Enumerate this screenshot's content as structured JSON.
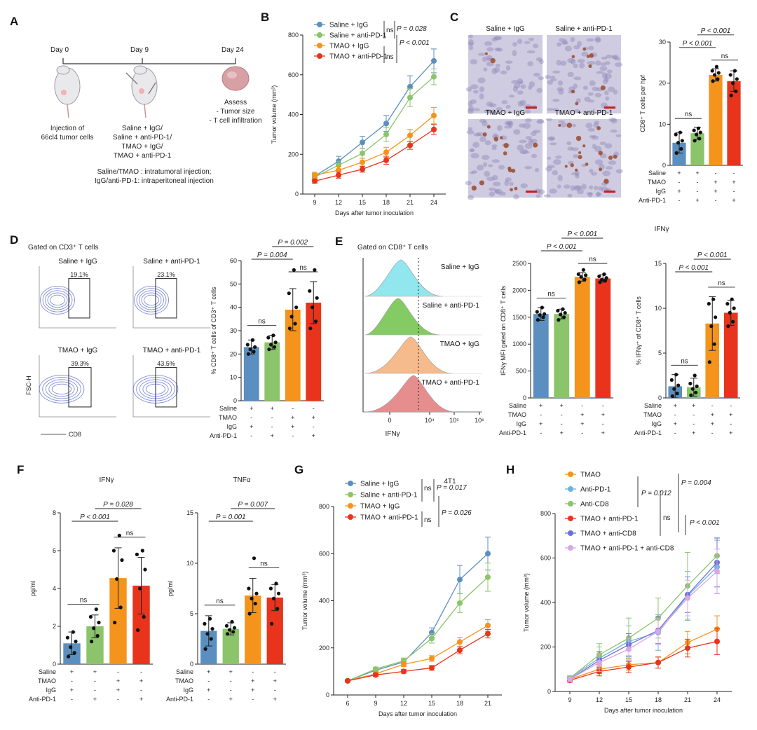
{
  "panels": {
    "A": "A",
    "B": "B",
    "C": "C",
    "D": "D",
    "E": "E",
    "F": "F",
    "G": "G",
    "H": "H"
  },
  "colors": {
    "blue": "#5b8fbf",
    "green": "#8bc46a",
    "orange": "#f4941c",
    "red": "#e8341c",
    "lightblue": "#6fb2e0",
    "lavender": "#d9a6e6",
    "purple": "#6c72d6"
  },
  "panelA": {
    "day0": "Day 0",
    "day9": "Day 9",
    "day24": "Day 24",
    "inj1": "Injection of",
    "inj2": "66cl4 tumor cells",
    "tr1": "Saline + IgG/",
    "tr2": "Saline + anti-PD-1/",
    "tr3": "TMAO + IgG/",
    "tr4": "TMAO + anti-PD-1",
    "as1": "Assess",
    "as2": "- Tumor size",
    "as3": "- T cell infiltration",
    "note1": "Saline/TMAO : intratumoral injection;",
    "note2": "IgG/anti-PD-1: intraperitoneal injection"
  },
  "panelC_images": [
    "Saline + IgG",
    "Saline + anti-PD-1",
    "TMAO + IgG",
    "TMAO + anti-PD-1"
  ],
  "panelD_plots": {
    "gate": "Gated on CD3⁺ T cells",
    "titles": [
      "Saline + IgG",
      "Saline + anti-PD-1",
      "TMAO + IgG",
      "TMAO + anti-PD-1"
    ],
    "pct": [
      "19.1%",
      "23.1%",
      "39.3%",
      "43.5%"
    ],
    "ylabel": "FSC-H",
    "xlabel": "CD8"
  },
  "panelE_hist": {
    "gate": "Gated on CD8⁺ T cells",
    "titles": [
      "Saline + IgG",
      "Saline + anti-PD-1",
      "TMAO + IgG",
      "TMAO + anti-PD-1"
    ],
    "xlabel": "IFNγ",
    "xticks": [
      "0",
      "10⁴",
      "10⁵",
      "10⁶"
    ]
  },
  "panelE_title": "IFNγ",
  "panelF_title": "",
  "panelG_title": "4T1",
  "treat_rows": [
    "Saline",
    "TMAO",
    "IgG",
    "Anti-PD-1"
  ],
  "treat_signs": [
    [
      "+",
      "+",
      "-",
      "-"
    ],
    [
      "-",
      "-",
      "+",
      "+"
    ],
    [
      "+",
      "-",
      "+",
      "-"
    ],
    [
      "-",
      "+",
      "-",
      "+"
    ]
  ],
  "chart_data": [
    {
      "id": "B",
      "type": "line",
      "xlabel": "Days after tumor inoculation",
      "ylabel": "Tumor volume (mm³)",
      "x": [
        9,
        12,
        15,
        18,
        21,
        24
      ],
      "xlim": [
        7.5,
        25.5
      ],
      "ylim": [
        0,
        800
      ],
      "yticks": [
        0,
        200,
        400,
        600,
        800
      ],
      "series": [
        {
          "name": "Saline + IgG",
          "color": "#5b8fbf",
          "values": [
            90,
            165,
            260,
            355,
            540,
            670
          ],
          "err": [
            15,
            25,
            30,
            40,
            55,
            60
          ]
        },
        {
          "name": "Saline + anti-PD-1",
          "color": "#8bc46a",
          "values": [
            85,
            145,
            205,
            300,
            485,
            590
          ],
          "err": [
            12,
            20,
            25,
            35,
            45,
            40
          ]
        },
        {
          "name": "TMAO + IgG",
          "color": "#f4941c",
          "values": [
            95,
            120,
            160,
            210,
            295,
            395
          ],
          "err": [
            15,
            20,
            20,
            25,
            30,
            40
          ]
        },
        {
          "name": "TMAO + anti-PD-1",
          "color": "#e8341c",
          "values": [
            65,
            95,
            125,
            170,
            245,
            325
          ],
          "err": [
            10,
            15,
            15,
            20,
            20,
            25
          ]
        }
      ],
      "stats": [
        {
          "text": "ns",
          "italic": false
        },
        {
          "text": "P = 0.028",
          "italic": true
        },
        {
          "text": "ns",
          "italic": false
        },
        {
          "text": "P < 0.001",
          "italic": true
        }
      ]
    },
    {
      "id": "C",
      "type": "bar",
      "ylabel": "CD8⁺ T cells per hpf",
      "ylim": [
        0,
        30
      ],
      "yticks": [
        0,
        10,
        20,
        30
      ],
      "values": [
        5.5,
        7.8,
        22,
        20.5
      ],
      "err": [
        2.5,
        1.5,
        1.5,
        2.5
      ],
      "points": [
        [
          3,
          4,
          5.5,
          6,
          7.5,
          8
        ],
        [
          6,
          6.5,
          7.5,
          8,
          8.5,
          9
        ],
        [
          20.5,
          21,
          22,
          22.5,
          23,
          24
        ],
        [
          17,
          18,
          20,
          21,
          22,
          23
        ]
      ],
      "stats": [
        {
          "text": "ns"
        },
        {
          "text": "P < 0.001",
          "italic": true
        },
        {
          "text": "P < 0.001",
          "italic": true
        },
        {
          "text": "ns"
        }
      ]
    },
    {
      "id": "D",
      "type": "bar",
      "ylabel": "% CD8⁺ T cells of CD3⁺ T cells",
      "ylim": [
        0,
        60
      ],
      "yticks": [
        0,
        10,
        20,
        30,
        40,
        50,
        60
      ],
      "values": [
        23,
        25,
        39,
        42
      ],
      "err": [
        3,
        3,
        9,
        9
      ],
      "points": [
        [
          20,
          21,
          22,
          23,
          24,
          26
        ],
        [
          22,
          23,
          24,
          25,
          27,
          28
        ],
        [
          31,
          33,
          36,
          40,
          46,
          56
        ],
        [
          31,
          34,
          40,
          44,
          47,
          56
        ]
      ],
      "stats": [
        {
          "text": "ns"
        },
        {
          "text": "P = 0.004",
          "italic": true
        },
        {
          "text": "P = 0.002",
          "italic": true
        },
        {
          "text": "ns"
        }
      ]
    },
    {
      "id": "E1",
      "type": "bar",
      "ylabel": "IFNγ MFI gated on CD8⁺ T cells",
      "ylim": [
        0,
        2500
      ],
      "yticks": [
        0,
        500,
        1000,
        1500,
        2000,
        2500
      ],
      "values": [
        1560,
        1560,
        2250,
        2220
      ],
      "err": [
        120,
        90,
        80,
        70
      ],
      "points": [
        [
          1450,
          1500,
          1540,
          1560,
          1600,
          1680
        ],
        [
          1450,
          1500,
          1550,
          1580,
          1620,
          1650
        ],
        [
          2150,
          2200,
          2250,
          2280,
          2300,
          2380
        ],
        [
          2150,
          2180,
          2200,
          2230,
          2260,
          2300
        ]
      ],
      "stats": [
        {
          "text": "ns"
        },
        {
          "text": "P < 0.001",
          "italic": true
        },
        {
          "text": "P < 0.001",
          "italic": true
        },
        {
          "text": "ns"
        }
      ]
    },
    {
      "id": "E2",
      "type": "bar",
      "ylabel": "% IFNγ⁺ of CD8⁺ T cells",
      "ylim": [
        0,
        15
      ],
      "yticks": [
        0,
        5,
        10,
        15
      ],
      "values": [
        1.3,
        1.2,
        8.3,
        9.5
      ],
      "err": [
        1.3,
        1.0,
        3.0,
        1.4
      ],
      "points": [
        [
          0.2,
          0.5,
          1.0,
          1.4,
          2.0,
          2.6
        ],
        [
          0.3,
          0.6,
          1.0,
          1.3,
          1.6,
          2.5
        ],
        [
          4.0,
          6.0,
          8.0,
          9.0,
          10.5,
          11.0
        ],
        [
          8.0,
          8.5,
          9.5,
          10.0,
          10.5,
          11.0
        ]
      ],
      "stats": [
        {
          "text": "ns"
        },
        {
          "text": "P < 0.001",
          "italic": true
        },
        {
          "text": "P < 0.001",
          "italic": true
        },
        {
          "text": "ns"
        }
      ]
    },
    {
      "id": "F1",
      "type": "bar",
      "title": "IFNγ",
      "ylabel": "pg/ml",
      "ylim": [
        0,
        8
      ],
      "yticks": [
        0,
        2,
        4,
        6,
        8
      ],
      "values": [
        1.1,
        2.0,
        4.55,
        4.15
      ],
      "err": [
        0.6,
        0.6,
        1.6,
        1.5
      ],
      "points": [
        [
          0.4,
          0.6,
          0.9,
          1.2,
          1.4,
          1.7
        ],
        [
          1.2,
          1.5,
          1.9,
          2.2,
          2.5,
          2.9
        ],
        [
          2.2,
          3.0,
          4.5,
          5.5,
          6.0,
          6.8
        ],
        [
          1.8,
          2.5,
          4.0,
          5.0,
          5.8,
          6.0
        ]
      ],
      "stats": [
        {
          "text": "ns"
        },
        {
          "text": "P < 0.001",
          "italic": true
        },
        {
          "text": "P = 0.028",
          "italic": true
        },
        {
          "text": "ns"
        }
      ]
    },
    {
      "id": "F2",
      "type": "bar",
      "title": "TNFα",
      "ylabel": "pg/ml",
      "ylim": [
        0,
        15
      ],
      "yticks": [
        0,
        5,
        10,
        15
      ],
      "values": [
        3.3,
        3.5,
        6.8,
        6.6
      ],
      "err": [
        1.5,
        0.6,
        1.7,
        1.3
      ],
      "points": [
        [
          1.5,
          2.5,
          3.0,
          3.5,
          4.0,
          4.5
        ],
        [
          3.0,
          3.2,
          3.4,
          3.6,
          3.8,
          4.2
        ],
        [
          5.0,
          6.0,
          6.5,
          7.0,
          7.5,
          10.5
        ],
        [
          4.0,
          5.5,
          6.5,
          7.0,
          7.5,
          8.0
        ]
      ],
      "stats": [
        {
          "text": "ns"
        },
        {
          "text": "P = 0.001",
          "italic": true
        },
        {
          "text": "P = 0.007",
          "italic": true
        },
        {
          "text": "ns"
        }
      ]
    },
    {
      "id": "G",
      "type": "line",
      "title": "4T1",
      "xlabel": "Days after tumor inoculation",
      "ylabel": "Tumor volume (mm³)",
      "x": [
        6,
        9,
        12,
        15,
        18,
        21
      ],
      "xlim": [
        4.5,
        22.5
      ],
      "ylim": [
        0,
        800
      ],
      "yticks": [
        0,
        200,
        400,
        600,
        800
      ],
      "series": [
        {
          "name": "Saline + IgG",
          "color": "#5b8fbf",
          "values": [
            60,
            105,
            140,
            265,
            490,
            600
          ],
          "err": [
            5,
            8,
            12,
            20,
            60,
            70
          ]
        },
        {
          "name": "Saline + anti-PD-1",
          "color": "#8bc46a",
          "values": [
            60,
            110,
            145,
            240,
            390,
            500
          ],
          "err": [
            5,
            8,
            12,
            20,
            40,
            60
          ]
        },
        {
          "name": "TMAO + IgG",
          "color": "#f4941c",
          "values": [
            60,
            90,
            130,
            155,
            225,
            295
          ],
          "err": [
            5,
            8,
            10,
            12,
            20,
            25
          ]
        },
        {
          "name": "TMAO + anti-PD-1",
          "color": "#e8341c",
          "values": [
            60,
            85,
            100,
            115,
            190,
            260
          ],
          "err": [
            5,
            6,
            8,
            10,
            15,
            18
          ]
        }
      ],
      "stats": [
        {
          "text": "ns",
          "italic": false
        },
        {
          "text": "P = 0.017",
          "italic": true
        },
        {
          "text": "ns",
          "italic": false
        },
        {
          "text": "P = 0.026",
          "italic": true
        }
      ]
    },
    {
      "id": "H",
      "type": "line",
      "xlabel": "Days after tumor inoculation",
      "ylabel": "Tumor volume (mm³)",
      "x": [
        9,
        12,
        15,
        18,
        21,
        24
      ],
      "xlim": [
        7.5,
        25.5
      ],
      "ylim": [
        0,
        800
      ],
      "yticks": [
        0,
        200,
        400,
        600,
        800
      ],
      "series": [
        {
          "name": "TMAO",
          "color": "#f4941c",
          "values": [
            55,
            100,
            120,
            130,
            220,
            280
          ],
          "err": [
            8,
            20,
            25,
            25,
            50,
            60
          ]
        },
        {
          "name": "Anti-PD-1",
          "color": "#6fb2e0",
          "values": [
            60,
            150,
            225,
            265,
            430,
            560
          ],
          "err": [
            10,
            50,
            70,
            80,
            110,
            120
          ]
        },
        {
          "name": "Anti-CD8",
          "color": "#8bc46a",
          "values": [
            60,
            165,
            240,
            330,
            475,
            610
          ],
          "err": [
            10,
            50,
            90,
            90,
            150,
            80
          ]
        },
        {
          "name": "TMAO + anti-PD-1",
          "color": "#e8341c",
          "values": [
            50,
            90,
            110,
            130,
            195,
            225
          ],
          "err": [
            8,
            20,
            25,
            25,
            40,
            60
          ]
        },
        {
          "name": "TMAO + anti-CD8",
          "color": "#6c72d6",
          "values": [
            55,
            140,
            210,
            275,
            435,
            580
          ],
          "err": [
            10,
            40,
            50,
            60,
            80,
            110
          ]
        },
        {
          "name": "TMAO + anti-PD-1 + anti-CD8",
          "color": "#d9a6e6",
          "values": [
            55,
            130,
            190,
            270,
            420,
            540
          ],
          "err": [
            10,
            40,
            50,
            60,
            80,
            100
          ]
        }
      ],
      "stats": [
        {
          "text": "P = 0.012",
          "italic": true
        },
        {
          "text": "ns",
          "italic": false
        },
        {
          "text": "P = 0.004",
          "italic": true
        },
        {
          "text": "P < 0.001",
          "italic": true
        }
      ]
    }
  ]
}
